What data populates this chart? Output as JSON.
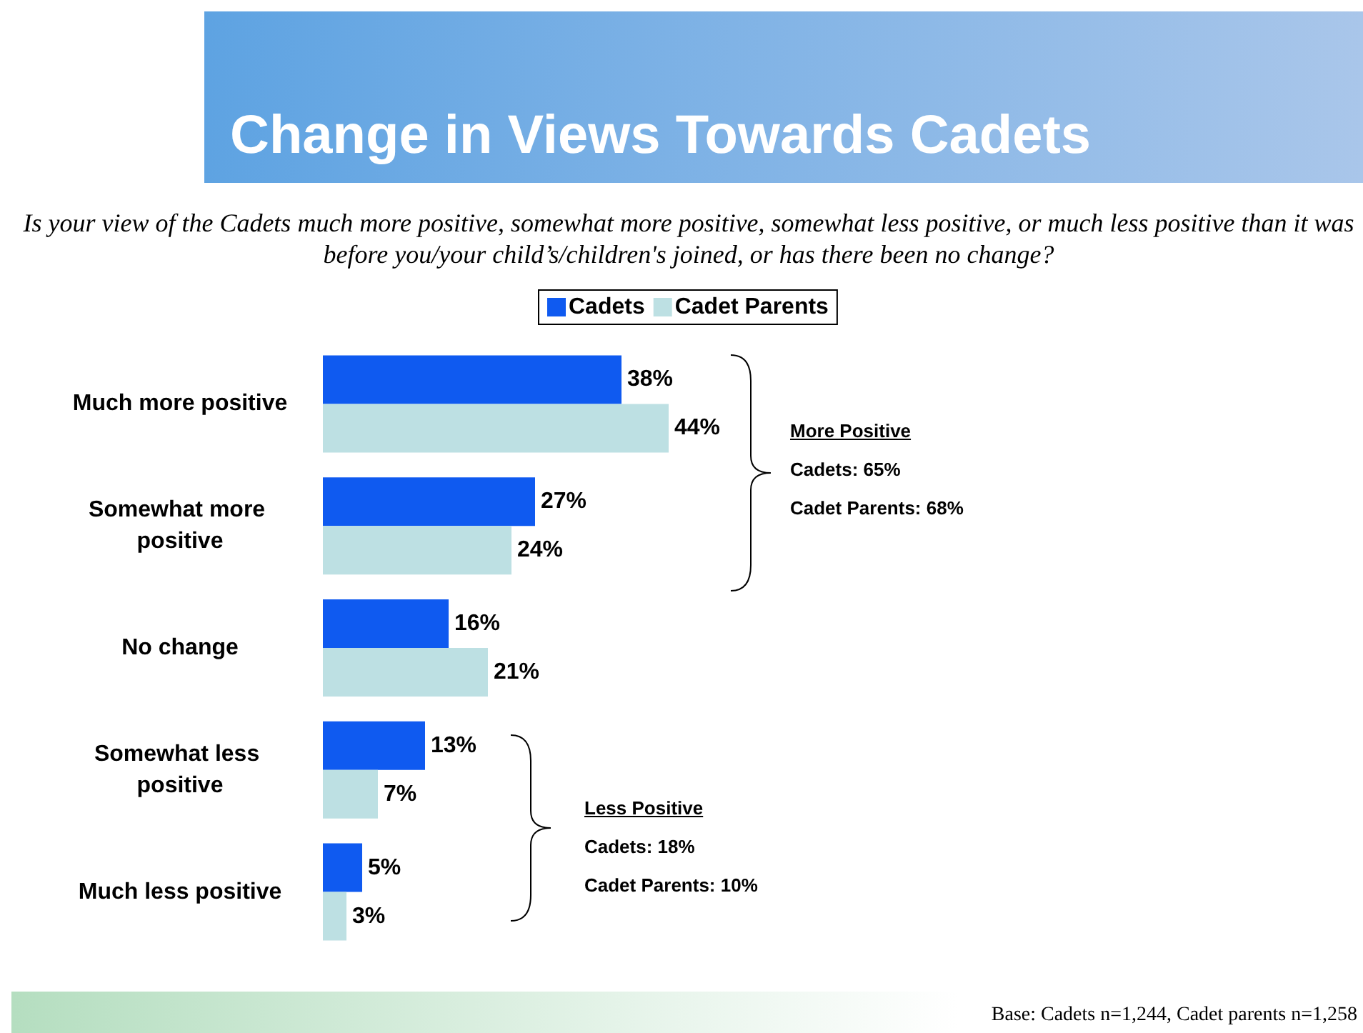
{
  "chart_data": {
    "type": "bar",
    "orientation": "horizontal",
    "title": "Change in Views Towards Cadets",
    "subtitle": "Is your view of the Cadets much more positive, somewhat more positive, somewhat less positive, or much less positive than it was before you/your child’s/children's joined, or has there been no change?",
    "categories": [
      "Much more positive",
      "Somewhat more positive",
      "No change",
      "Somewhat less positive",
      "Much less positive"
    ],
    "series": [
      {
        "name": "Cadets",
        "color": "#0f5af0",
        "values": [
          38,
          27,
          16,
          13,
          5
        ],
        "value_labels": [
          "38%",
          "27%",
          "16%",
          "13%",
          "5%"
        ]
      },
      {
        "name": "Cadet Parents",
        "color": "#bde0e3",
        "values": [
          44,
          24,
          21,
          7,
          3
        ],
        "value_labels": [
          "44%",
          "24%",
          "21%",
          "7%",
          "3%"
        ]
      }
    ],
    "legend": "top",
    "annotations": [
      "More Positive",
      "Cadets: 65%",
      "Cadet Parents: 68%",
      "Less Positive",
      "Cadets: 18%",
      "Cadet Parents: 10%",
      "Base: Cadets n=1,244, Cadet parents n=1,258"
    ]
  }
}
